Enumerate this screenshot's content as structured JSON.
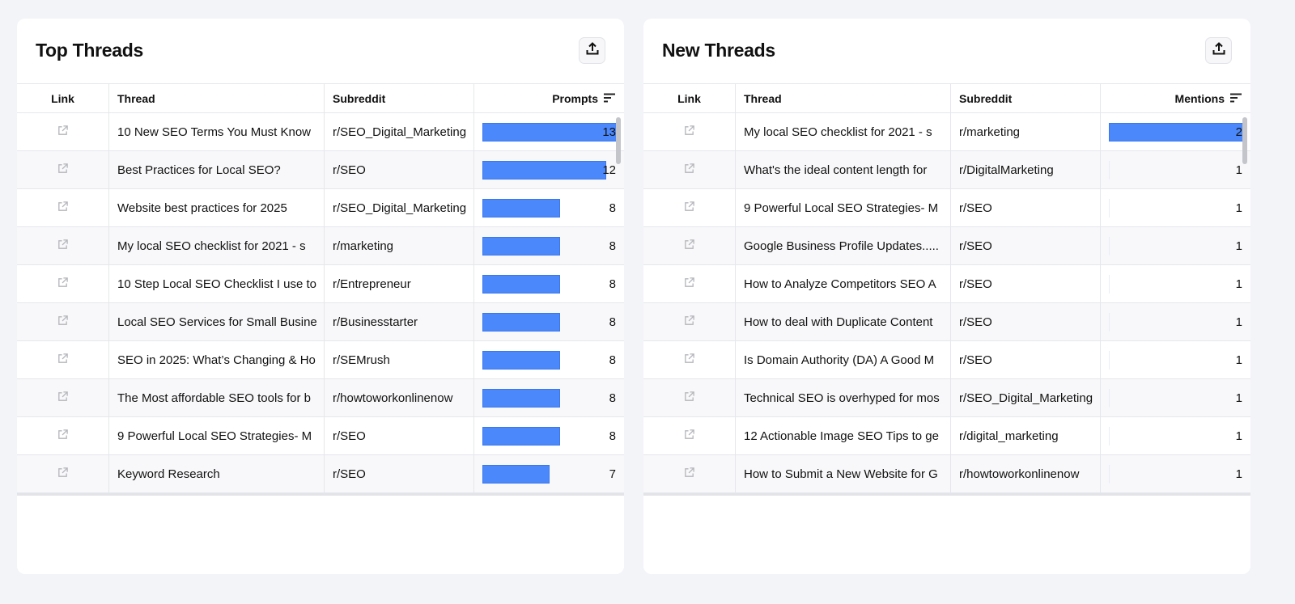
{
  "colors": {
    "bar": "#4a88fb",
    "background": "#f3f4f8"
  },
  "panels": [
    {
      "title": "Top Threads",
      "export_icon": "upload-icon",
      "columns": {
        "link": "Link",
        "thread": "Thread",
        "subreddit": "Subreddit",
        "metric": "Prompts"
      },
      "rows": [
        {
          "thread": "10 New SEO Terms You Must Know",
          "subreddit": "r/SEO_Digital_Marketing",
          "value": "13",
          "bar": 1.0
        },
        {
          "thread": "Best Practices for Local SEO?",
          "subreddit": "r/SEO",
          "value": "12",
          "bar": 0.92
        },
        {
          "thread": "Website best practices for 2025",
          "subreddit": "r/SEO_Digital_Marketing",
          "value": "8",
          "bar": 0.58
        },
        {
          "thread": "My local SEO checklist for 2021 - s",
          "subreddit": "r/marketing",
          "value": "8",
          "bar": 0.58
        },
        {
          "thread": "10 Step Local SEO Checklist I use to",
          "subreddit": "r/Entrepreneur",
          "value": "8",
          "bar": 0.58
        },
        {
          "thread": "Local SEO Services for Small Busine",
          "subreddit": "r/Businesstarter",
          "value": "8",
          "bar": 0.58
        },
        {
          "thread": "SEO in 2025: What’s Changing & Ho",
          "subreddit": "r/SEMrush",
          "value": "8",
          "bar": 0.58
        },
        {
          "thread": "The Most affordable SEO tools for b",
          "subreddit": "r/howtoworkonlinenow",
          "value": "8",
          "bar": 0.58
        },
        {
          "thread": "9 Powerful Local SEO Strategies- M",
          "subreddit": "r/SEO",
          "value": "8",
          "bar": 0.58
        },
        {
          "thread": "Keyword Research",
          "subreddit": "r/SEO",
          "value": "7",
          "bar": 0.5
        }
      ]
    },
    {
      "title": "New Threads",
      "export_icon": "upload-icon",
      "columns": {
        "link": "Link",
        "thread": "Thread",
        "subreddit": "Subreddit",
        "metric": "Mentions"
      },
      "rows": [
        {
          "thread": "My local SEO checklist for 2021 - s",
          "subreddit": "r/marketing",
          "value": "2",
          "bar": 1.0
        },
        {
          "thread": "What's the ideal content length for",
          "subreddit": "r/DigitalMarketing",
          "value": "1",
          "bar": 0
        },
        {
          "thread": "9 Powerful Local SEO Strategies- M",
          "subreddit": "r/SEO",
          "value": "1",
          "bar": 0
        },
        {
          "thread": "Google Business Profile Updates.....",
          "subreddit": "r/SEO",
          "value": "1",
          "bar": 0
        },
        {
          "thread": "How to Analyze Competitors SEO A",
          "subreddit": "r/SEO",
          "value": "1",
          "bar": 0
        },
        {
          "thread": "How to deal with Duplicate Content",
          "subreddit": "r/SEO",
          "value": "1",
          "bar": 0
        },
        {
          "thread": "Is Domain Authority (DA) A Good M",
          "subreddit": "r/SEO",
          "value": "1",
          "bar": 0
        },
        {
          "thread": "Technical SEO is overhyped for mos",
          "subreddit": "r/SEO_Digital_Marketing",
          "value": "1",
          "bar": 0
        },
        {
          "thread": "12 Actionable Image SEO Tips to ge",
          "subreddit": "r/digital_marketing",
          "value": "1",
          "bar": 0
        },
        {
          "thread": "How to Submit a New Website for G",
          "subreddit": "r/howtoworkonlinenow",
          "value": "1",
          "bar": 0
        }
      ]
    }
  ]
}
